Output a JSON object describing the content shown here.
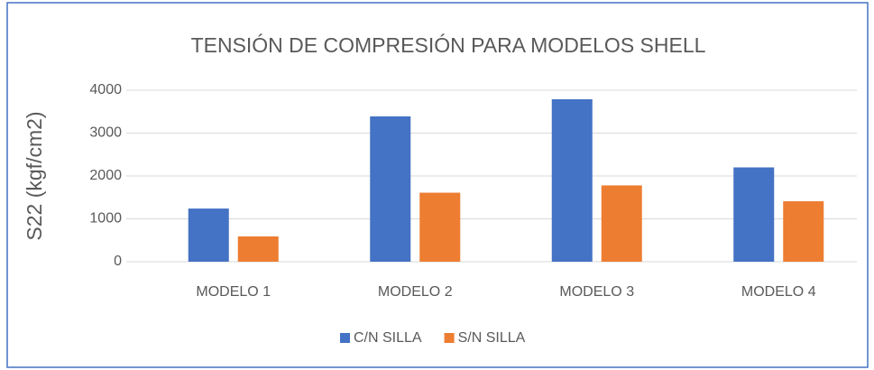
{
  "chart_data": {
    "type": "bar",
    "title": "TENSIÓN DE COMPRESIÓN PARA MODELOS SHELL",
    "y_label": "S22 (kgf/cm2)",
    "categories": [
      "MODELO 1",
      "MODELO 2",
      "MODELO 3",
      "MODELO 4"
    ],
    "series": [
      {
        "name": "C/N SILLA",
        "color": "#4472c4",
        "values": [
          1240,
          3390,
          3790,
          2200
        ]
      },
      {
        "name": "S/N SILLA",
        "color": "#ed7d31",
        "values": [
          590,
          1610,
          1780,
          1410
        ]
      }
    ],
    "ylim": [
      0,
      4000
    ],
    "yticks": [
      0,
      1000,
      2000,
      3000,
      4000
    ],
    "grid": true,
    "legend": "bottom"
  }
}
